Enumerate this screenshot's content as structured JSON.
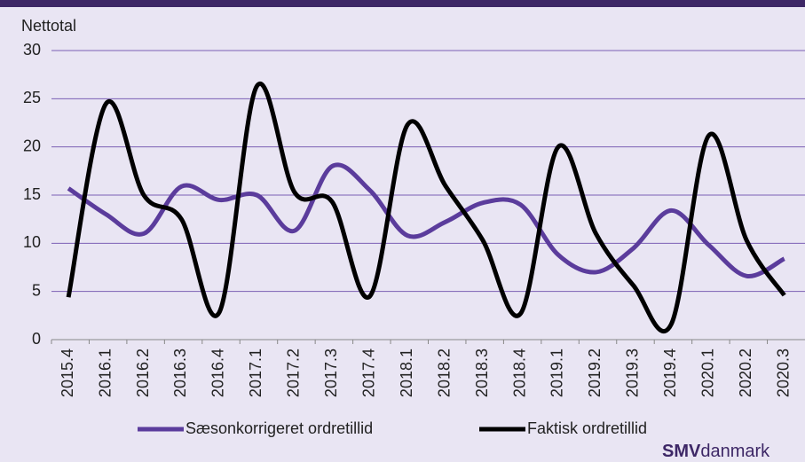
{
  "chart_data": {
    "type": "line",
    "y_label": "Nettotal",
    "categories": [
      "2015.4",
      "2016.1",
      "2016.2",
      "2016.3",
      "2016.4",
      "2017.1",
      "2017.2",
      "2017.3",
      "2017.4",
      "2018.1",
      "2018.2",
      "2018.3",
      "2018.4",
      "2019.1",
      "2019.2",
      "2019.3",
      "2019.4",
      "2020.1",
      "2020.2",
      "2020.3"
    ],
    "series": [
      {
        "name": "Sæsonkorrigeret ordretillid",
        "color": "#5b3c9c",
        "values": [
          15.7,
          13,
          11,
          15.9,
          14.5,
          15,
          11.3,
          18,
          15.5,
          10.8,
          12.2,
          14.2,
          14,
          8.8,
          7,
          9.5,
          13.4,
          9.8,
          6.6,
          8.4
        ]
      },
      {
        "name": "Faktisk ordretillid",
        "color": "#000000",
        "values": [
          4.4,
          24.5,
          15,
          12.5,
          2.8,
          26.3,
          15.3,
          14.3,
          4.5,
          22.3,
          16,
          10.3,
          2.7,
          20,
          11,
          5.6,
          1.6,
          21.2,
          10.3,
          4.6
        ]
      }
    ],
    "ylim": [
      0,
      30
    ],
    "yticks": [
      0,
      5,
      10,
      15,
      20,
      25,
      30
    ],
    "grid": true,
    "smooth": true,
    "legend": "bottom",
    "logo": {
      "bold": "SMV",
      "rest": "danmark"
    }
  }
}
